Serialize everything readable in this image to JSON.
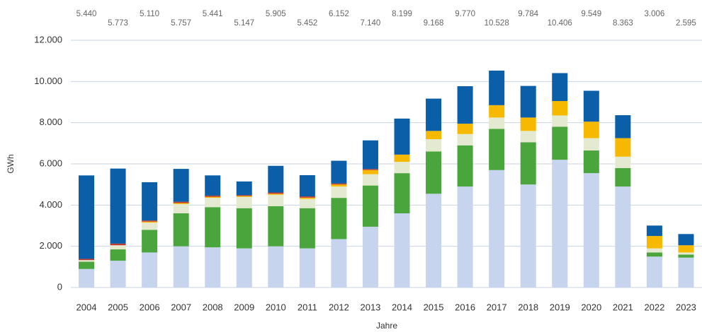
{
  "chart_data": {
    "type": "bar",
    "stacked": true,
    "y_label": "GWh",
    "x_label": "Jahre",
    "categories": [
      "2004",
      "2005",
      "2006",
      "2007",
      "2008",
      "2009",
      "2010",
      "2011",
      "2012",
      "2013",
      "2014",
      "2015",
      "2016",
      "2017",
      "2018",
      "2019",
      "2020",
      "2021",
      "2022",
      "2023"
    ],
    "series": [
      {
        "color": "#c6d4ee",
        "values": [
          900,
          1300,
          1700,
          2000,
          1950,
          1900,
          2000,
          1900,
          2350,
          2950,
          3600,
          4550,
          4900,
          5700,
          5000,
          6200,
          5550,
          4900,
          1500,
          1450
        ]
      },
      {
        "color": "#4aa53c",
        "values": [
          350,
          550,
          1100,
          1600,
          1950,
          1950,
          1950,
          1950,
          2000,
          2000,
          1950,
          2050,
          2000,
          2000,
          2050,
          1600,
          1100,
          900,
          200,
          150
        ]
      },
      {
        "color": "#e4ead0",
        "values": [
          80,
          200,
          350,
          450,
          450,
          550,
          550,
          450,
          550,
          550,
          550,
          600,
          550,
          550,
          550,
          550,
          600,
          550,
          200,
          100
        ]
      },
      {
        "color": "#f6b900",
        "values": [
          0,
          0,
          50,
          50,
          50,
          40,
          50,
          60,
          100,
          200,
          350,
          400,
          500,
          600,
          650,
          700,
          800,
          900,
          600,
          350
        ]
      },
      {
        "color": "#c0392b",
        "values": [
          60,
          80,
          50,
          60,
          60,
          40,
          60,
          60,
          50,
          50,
          0,
          0,
          0,
          0,
          0,
          0,
          0,
          0,
          0,
          0
        ]
      },
      {
        "color": "#0b5ea8",
        "values": [
          4050,
          3643,
          1860,
          1597,
          981,
          667,
          1295,
          1032,
          1102,
          1390,
          1749,
          1568,
          1820,
          1678,
          1534,
          1356,
          1499,
          1113,
          506,
          545
        ]
      }
    ],
    "totals": [
      5440,
      5773,
      5110,
      5757,
      5441,
      5147,
      5905,
      5452,
      6152,
      7140,
      8199,
      9168,
      9770,
      10528,
      9784,
      10406,
      9549,
      8363,
      3006,
      2595
    ],
    "value_labels": [
      "5.440",
      "5.773",
      "5.110",
      "5.757",
      "5.441",
      "5.147",
      "5.905",
      "5.452",
      "6.152",
      "7.140",
      "8.199",
      "9.168",
      "9.770",
      "10.528",
      "9.784",
      "10.406",
      "9.549",
      "8.363",
      "3.006",
      "2.595"
    ],
    "ylim": [
      0,
      12000
    ],
    "yticks": [
      0,
      {
        "value": 2000,
        "label": "2.000"
      },
      {
        "value": 4000,
        "label": "4.000"
      },
      {
        "value": 6000,
        "label": "6.000"
      },
      {
        "value": 8000,
        "label": "8.000"
      },
      {
        "value": 10000,
        "label": "10.000"
      },
      {
        "value": 12000,
        "label": "12.000"
      }
    ],
    "grid": true
  }
}
